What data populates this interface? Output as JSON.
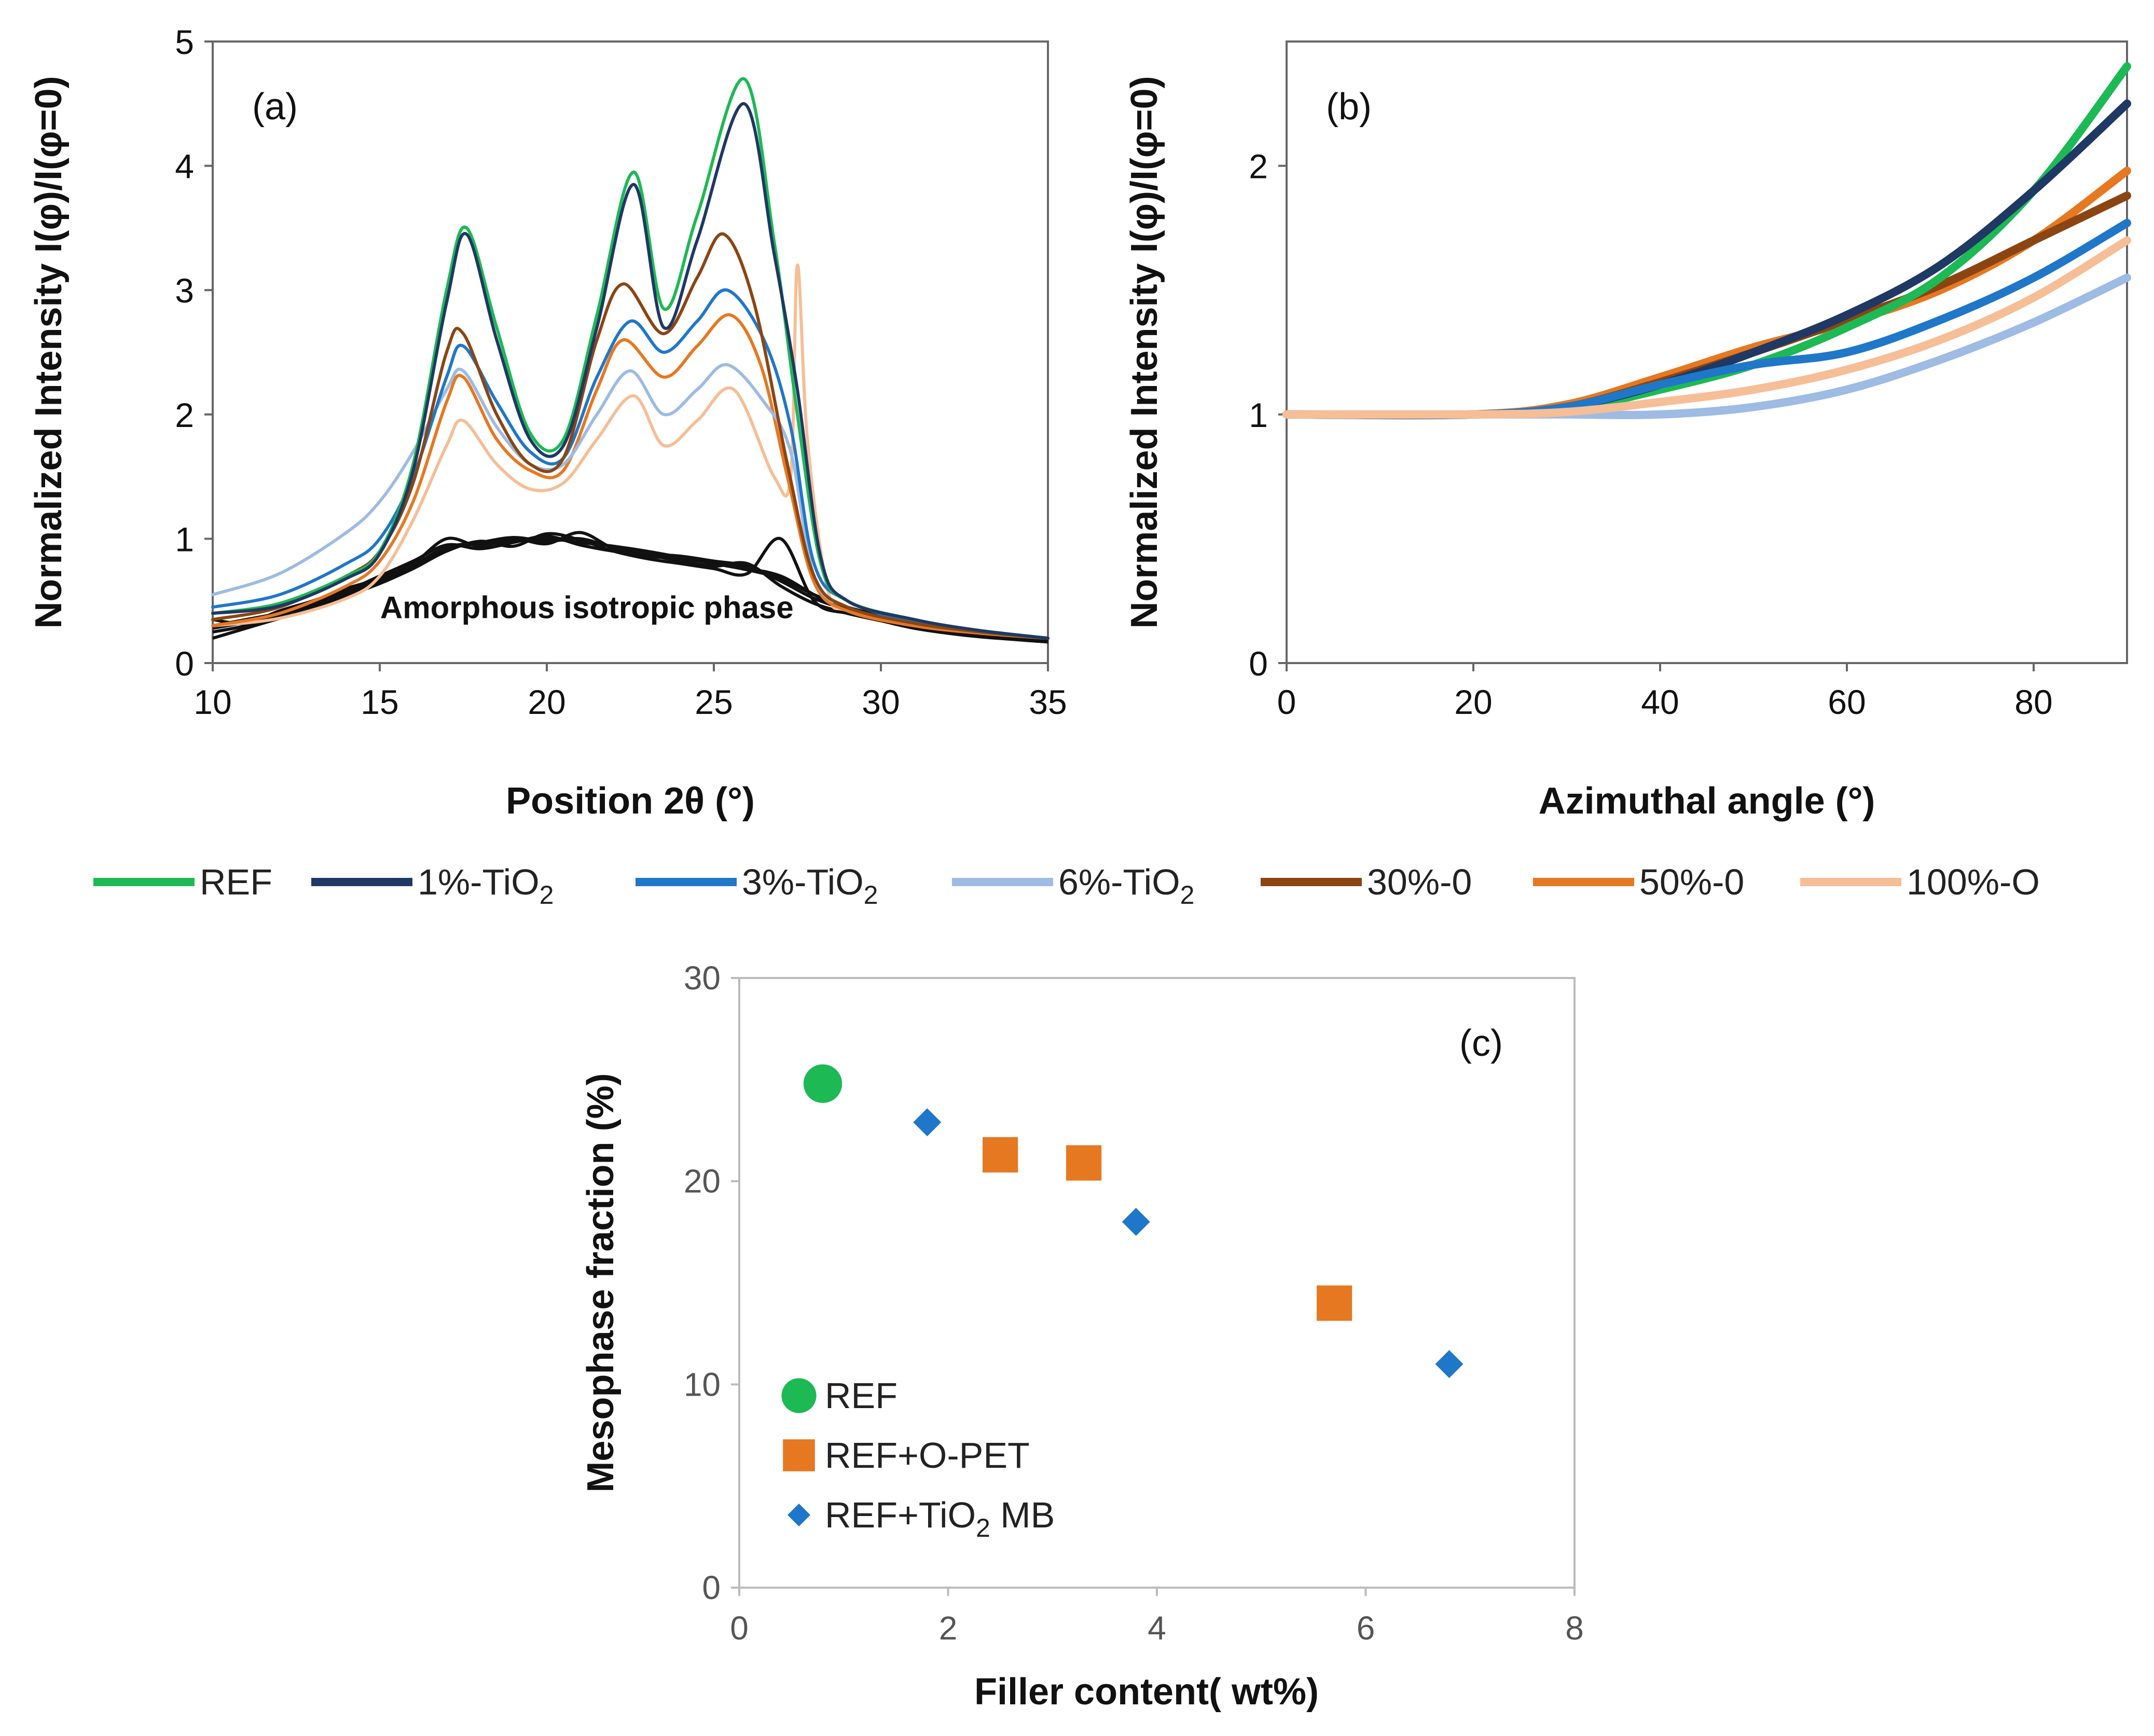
{
  "colors": {
    "REF": "#1DB954",
    "1%-TiO2": "#1F3864",
    "3%-TiO2": "#1F77C9",
    "6%-TiO2": "#9DBBE3",
    "30%-O": "#8B4513",
    "50%-O": "#E67822",
    "100%-O": "#F5BE96",
    "amorphous": "#111111",
    "tio2_marker": "#1F77C9",
    "opet_marker": "#E67822"
  },
  "legend": {
    "items": [
      {
        "key": "REF",
        "label": "REF"
      },
      {
        "key": "1%-TiO2",
        "label": "1%-TiO",
        "sub": "2"
      },
      {
        "key": "3%-TiO2",
        "label": "3%-TiO",
        "sub": "2"
      },
      {
        "key": "6%-TiO2",
        "label": "6%-TiO",
        "sub": "2"
      },
      {
        "key": "30%-O",
        "label": "30%-0"
      },
      {
        "key": "50%-O",
        "label": "50%-0"
      },
      {
        "key": "100%-O",
        "label": "100%-O"
      }
    ]
  },
  "chart_data": [
    {
      "panel": "(a)",
      "type": "line",
      "title": "",
      "xlabel": "Position 2θ (°)",
      "ylabel": "Normalized Intensity I(φ)/I(φ=0)",
      "xlim": [
        10,
        35
      ],
      "ylim": [
        0,
        5
      ],
      "xticks": [
        10,
        15,
        20,
        25,
        30,
        35
      ],
      "yticks": [
        0,
        1,
        2,
        3,
        4,
        5
      ],
      "annotation": "Amorphous isotropic phase",
      "series": [
        {
          "name": "REF",
          "x": [
            10,
            12,
            14,
            15,
            16,
            17,
            17.6,
            18.5,
            19.5,
            20.5,
            21.5,
            22.6,
            23.5,
            24.5,
            25.9,
            26.8,
            27.5,
            28.2,
            29,
            31,
            33,
            35
          ],
          "y": [
            0.4,
            0.48,
            0.7,
            0.9,
            1.6,
            3.0,
            3.5,
            2.7,
            1.85,
            1.8,
            2.8,
            3.95,
            2.85,
            3.6,
            4.7,
            3.4,
            2.0,
            0.8,
            0.5,
            0.35,
            0.26,
            0.2
          ]
        },
        {
          "name": "1%-TiO2",
          "x": [
            10,
            12,
            14,
            15,
            16,
            17,
            17.6,
            18.5,
            19.5,
            20.5,
            21.5,
            22.6,
            23.5,
            24.5,
            25.9,
            26.8,
            27.5,
            28.2,
            29,
            31,
            33,
            35
          ],
          "y": [
            0.4,
            0.46,
            0.68,
            0.88,
            1.55,
            2.9,
            3.45,
            2.6,
            1.8,
            1.75,
            2.7,
            3.85,
            2.7,
            3.4,
            4.5,
            3.3,
            2.2,
            0.85,
            0.5,
            0.35,
            0.26,
            0.2
          ]
        },
        {
          "name": "3%-TiO2",
          "x": [
            10,
            12,
            14,
            15,
            16,
            17,
            17.5,
            18.5,
            19.5,
            20.5,
            21.5,
            22.5,
            23.5,
            24.5,
            25.4,
            26.5,
            27.3,
            28,
            29,
            31,
            33,
            35
          ],
          "y": [
            0.45,
            0.55,
            0.8,
            1.0,
            1.5,
            2.3,
            2.55,
            2.1,
            1.7,
            1.65,
            2.3,
            2.75,
            2.5,
            2.75,
            3.0,
            2.6,
            1.9,
            0.8,
            0.5,
            0.33,
            0.26,
            0.2
          ]
        },
        {
          "name": "6%-TiO2",
          "x": [
            10,
            12,
            14,
            15,
            16,
            17,
            17.5,
            18.5,
            19.5,
            20.5,
            21.5,
            22.5,
            23.5,
            24.5,
            25.4,
            26.5,
            27.3,
            28,
            29,
            31,
            33,
            35
          ],
          "y": [
            0.55,
            0.72,
            1.05,
            1.3,
            1.7,
            2.2,
            2.35,
            1.9,
            1.6,
            1.6,
            2.0,
            2.35,
            2.0,
            2.2,
            2.4,
            2.1,
            1.7,
            0.7,
            0.45,
            0.32,
            0.25,
            0.2
          ]
        },
        {
          "name": "30%-O",
          "x": [
            10,
            12,
            14,
            15,
            16,
            17,
            17.5,
            18.5,
            19.5,
            20.5,
            21.5,
            22.3,
            23.5,
            24.5,
            25.3,
            26.2,
            27.2,
            28,
            29,
            31,
            33,
            35
          ],
          "y": [
            0.35,
            0.45,
            0.7,
            0.9,
            1.45,
            2.5,
            2.65,
            2.0,
            1.6,
            1.65,
            2.6,
            3.05,
            2.65,
            3.1,
            3.45,
            2.9,
            1.6,
            0.7,
            0.45,
            0.32,
            0.25,
            0.2
          ]
        },
        {
          "name": "50%-O",
          "x": [
            10,
            12,
            14,
            15,
            16,
            17,
            17.5,
            18.5,
            19.5,
            20.5,
            21.5,
            22.3,
            23.5,
            24.5,
            25.5,
            26.4,
            27.2,
            28,
            29,
            31,
            33,
            35
          ],
          "y": [
            0.3,
            0.4,
            0.62,
            0.82,
            1.3,
            2.1,
            2.3,
            1.8,
            1.55,
            1.55,
            2.2,
            2.6,
            2.3,
            2.55,
            2.8,
            2.4,
            1.5,
            0.65,
            0.42,
            0.3,
            0.24,
            0.2
          ]
        },
        {
          "name": "100%-O",
          "x": [
            10,
            12,
            14,
            15,
            16,
            17,
            17.5,
            18.5,
            19.5,
            20.5,
            21.5,
            22.6,
            23.5,
            24.5,
            25.6,
            26.8,
            27.3,
            27.5,
            27.8,
            28.4,
            29,
            31,
            33,
            35
          ],
          "y": [
            0.3,
            0.36,
            0.52,
            0.7,
            1.15,
            1.75,
            1.95,
            1.6,
            1.4,
            1.45,
            1.8,
            2.15,
            1.75,
            1.95,
            2.2,
            1.5,
            1.5,
            3.2,
            1.8,
            0.6,
            0.42,
            0.3,
            0.24,
            0.2
          ]
        }
      ],
      "amorphous": [
        {
          "x": [
            10,
            11,
            12,
            13,
            14,
            15,
            16,
            17,
            18,
            19,
            20,
            21,
            22,
            23,
            24,
            25,
            26,
            27,
            28,
            29,
            30,
            31,
            32,
            33,
            34,
            35
          ],
          "y": [
            0.3,
            0.35,
            0.4,
            0.45,
            0.55,
            0.65,
            0.78,
            0.92,
            0.96,
            0.98,
            1.0,
            0.97,
            0.94,
            0.9,
            0.85,
            0.8,
            0.75,
            0.68,
            0.55,
            0.45,
            0.38,
            0.3,
            0.26,
            0.23,
            0.2,
            0.18
          ]
        },
        {
          "x": [
            10,
            11,
            12,
            13,
            14,
            15,
            16,
            17,
            18,
            19,
            20,
            21,
            22,
            23,
            24,
            25,
            26,
            27,
            28,
            29,
            30,
            31,
            32,
            33,
            34,
            35
          ],
          "y": [
            0.25,
            0.3,
            0.38,
            0.48,
            0.58,
            0.7,
            0.82,
            0.95,
            0.92,
            0.97,
            1.02,
            0.95,
            0.9,
            0.87,
            0.82,
            0.78,
            0.8,
            0.62,
            0.48,
            0.4,
            0.34,
            0.28,
            0.24,
            0.21,
            0.19,
            0.17
          ]
        },
        {
          "x": [
            10,
            11,
            12,
            13,
            14,
            15,
            16,
            17,
            18,
            19,
            20,
            21,
            22,
            23,
            24,
            25,
            26,
            27,
            28,
            29,
            30,
            31,
            32,
            33,
            34,
            35
          ],
          "y": [
            0.35,
            0.32,
            0.42,
            0.5,
            0.6,
            0.68,
            0.8,
            1.0,
            0.94,
            1.0,
            0.96,
            1.05,
            0.92,
            0.86,
            0.84,
            0.8,
            0.76,
            0.7,
            0.55,
            0.42,
            0.36,
            0.3,
            0.25,
            0.22,
            0.2,
            0.18
          ]
        },
        {
          "x": [
            10,
            11,
            12,
            13,
            14,
            15,
            16,
            17,
            18,
            19,
            20,
            21,
            22,
            23,
            24,
            25,
            26,
            27,
            28,
            29,
            30,
            31,
            32,
            33,
            34,
            35
          ],
          "y": [
            0.2,
            0.28,
            0.36,
            0.44,
            0.54,
            0.64,
            0.76,
            0.9,
            0.98,
            0.94,
            1.04,
            0.99,
            0.9,
            0.84,
            0.8,
            0.76,
            0.72,
            1.0,
            0.5,
            0.4,
            0.35,
            0.29,
            0.25,
            0.22,
            0.19,
            0.17
          ]
        },
        {
          "x": [
            10,
            11,
            12,
            13,
            14,
            15,
            16,
            17,
            18,
            19,
            20,
            21,
            22,
            23,
            24,
            25,
            26,
            27,
            28,
            29,
            30,
            31,
            32,
            33,
            34,
            35
          ],
          "y": [
            0.28,
            0.33,
            0.4,
            0.47,
            0.57,
            0.67,
            0.79,
            0.93,
            0.97,
            1.01,
            0.98,
            1.0,
            0.93,
            0.88,
            0.86,
            0.82,
            0.78,
            0.66,
            0.52,
            0.43,
            0.37,
            0.3,
            0.26,
            0.22,
            0.2,
            0.18
          ]
        }
      ]
    },
    {
      "panel": "(b)",
      "type": "line",
      "title": "",
      "xlabel": "Azimuthal angle (°)",
      "ylabel": "Normalized Intensity I(φ)/I(φ=0)",
      "xlim": [
        0,
        90
      ],
      "ylim": [
        0,
        2.5
      ],
      "xticks": [
        0,
        20,
        40,
        60,
        80
      ],
      "yticks": [
        0,
        1,
        2
      ],
      "series": [
        {
          "name": "REF",
          "x": [
            0,
            20,
            30,
            40,
            50,
            60,
            70,
            80,
            90
          ],
          "y": [
            1.0,
            1.0,
            1.02,
            1.1,
            1.2,
            1.35,
            1.55,
            1.9,
            2.4
          ]
        },
        {
          "name": "1%-TiO2",
          "x": [
            0,
            20,
            30,
            40,
            50,
            60,
            70,
            80,
            90
          ],
          "y": [
            1.0,
            1.0,
            1.03,
            1.12,
            1.25,
            1.4,
            1.6,
            1.9,
            2.25
          ]
        },
        {
          "name": "3%-TiO2",
          "x": [
            0,
            20,
            30,
            40,
            50,
            60,
            70,
            80,
            90
          ],
          "y": [
            1.0,
            1.0,
            1.03,
            1.12,
            1.2,
            1.25,
            1.38,
            1.55,
            1.77
          ]
        },
        {
          "name": "6%-TiO2",
          "x": [
            0,
            20,
            30,
            40,
            50,
            60,
            70,
            80,
            90
          ],
          "y": [
            1.0,
            1.0,
            1.0,
            1.0,
            1.03,
            1.1,
            1.22,
            1.37,
            1.55
          ]
        },
        {
          "name": "30%-O",
          "x": [
            0,
            20,
            30,
            40,
            50,
            60,
            70,
            80,
            90
          ],
          "y": [
            1.0,
            1.0,
            1.03,
            1.13,
            1.25,
            1.38,
            1.52,
            1.7,
            1.88
          ]
        },
        {
          "name": "50%-O",
          "x": [
            0,
            20,
            30,
            40,
            50,
            60,
            70,
            80,
            90
          ],
          "y": [
            1.0,
            1.0,
            1.04,
            1.15,
            1.27,
            1.37,
            1.5,
            1.7,
            1.98
          ]
        },
        {
          "name": "100%-O",
          "x": [
            0,
            20,
            30,
            40,
            50,
            60,
            70,
            80,
            90
          ],
          "y": [
            1.0,
            1.0,
            1.01,
            1.05,
            1.1,
            1.18,
            1.3,
            1.47,
            1.7
          ]
        }
      ]
    },
    {
      "panel": "(c)",
      "type": "scatter",
      "title": "",
      "xlabel": "Filler content( wt%)",
      "ylabel": "Mesophase fraction (%)",
      "xlim": [
        0,
        8
      ],
      "ylim": [
        0,
        30
      ],
      "xticks": [
        0,
        2,
        4,
        6,
        8
      ],
      "yticks": [
        0,
        10,
        20,
        30
      ],
      "legend_position": "bottom-left",
      "series": [
        {
          "name": "REF",
          "marker": "circle",
          "x": [
            0.8
          ],
          "y": [
            24.8
          ]
        },
        {
          "name": "REF+O-PET",
          "marker": "square",
          "x": [
            2.5,
            3.3,
            5.7
          ],
          "y": [
            21.3,
            20.9,
            14.0
          ]
        },
        {
          "name": "REF+TiO2 MB",
          "marker": "diamond",
          "x": [
            1.8,
            3.8,
            6.8
          ],
          "y": [
            22.9,
            18.0,
            11.0
          ]
        }
      ]
    }
  ],
  "scatter_legend": [
    {
      "label": "REF"
    },
    {
      "label": "REF+O-PET"
    },
    {
      "label": "REF+TiO",
      "sub": "2",
      "tail": " MB"
    }
  ]
}
